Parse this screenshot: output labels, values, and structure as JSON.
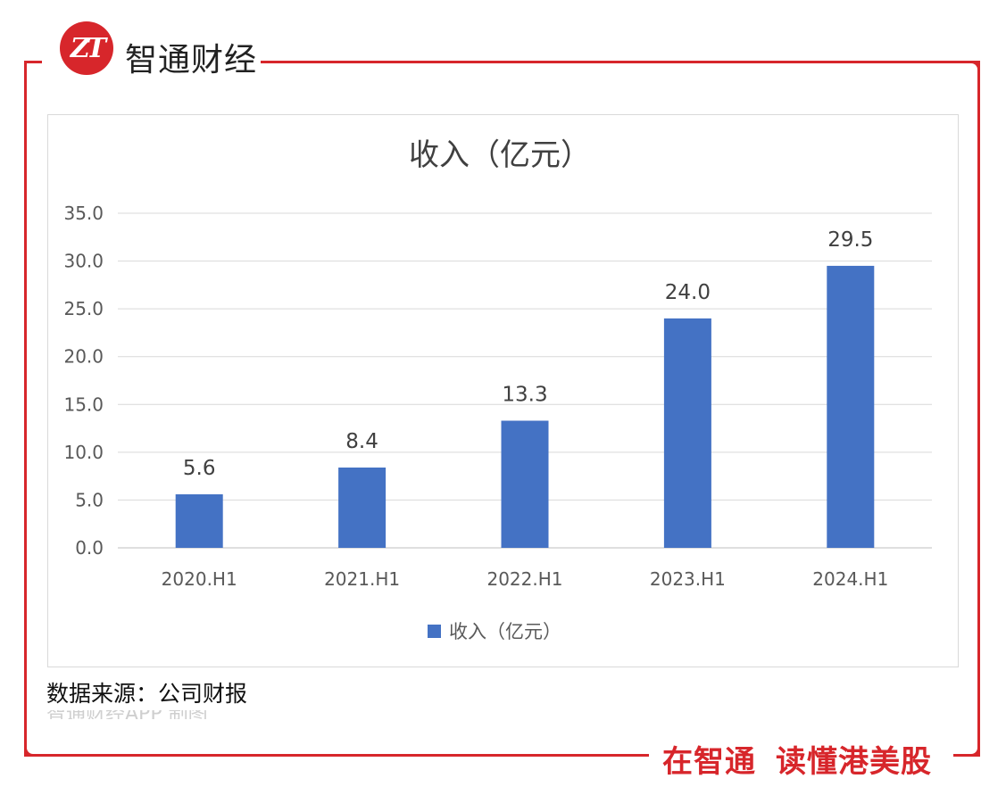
{
  "brand": {
    "logo_text": "ZT",
    "name": "智通财经",
    "slogan_part1": "在智通",
    "slogan_part2": "读懂港美股",
    "accent_color": "#d7262b"
  },
  "source_text": "数据来源：公司财报",
  "faded_text": "智通财经APP 制图",
  "chart_data": {
    "type": "bar",
    "title": "收入（亿元）",
    "categories": [
      "2020.H1",
      "2021.H1",
      "2022.H1",
      "2023.H1",
      "2024.H1"
    ],
    "series": [
      {
        "name": "收入（亿元）",
        "values": [
          5.6,
          8.4,
          13.3,
          24.0,
          29.5
        ],
        "color": "#4472c4"
      }
    ],
    "data_labels": [
      "5.6",
      "8.4",
      "13.3",
      "24.0",
      "29.5"
    ],
    "y_ticks": [
      "0.0",
      "5.0",
      "10.0",
      "15.0",
      "20.0",
      "25.0",
      "30.0",
      "35.0"
    ],
    "ylim": [
      0,
      35
    ],
    "grid": true,
    "legend_position": "bottom"
  }
}
